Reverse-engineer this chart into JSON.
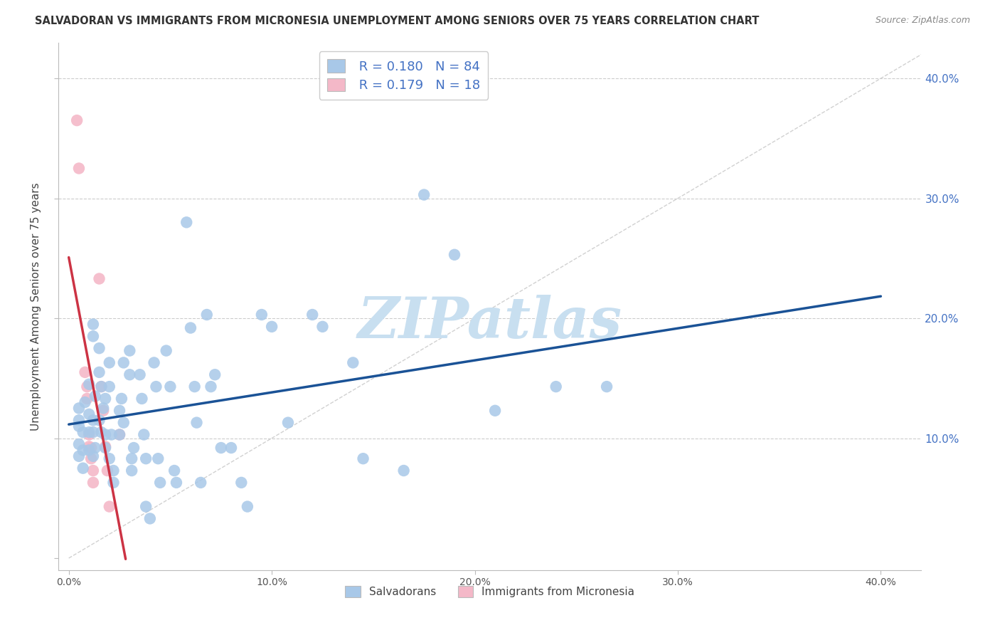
{
  "title": "SALVADORAN VS IMMIGRANTS FROM MICRONESIA UNEMPLOYMENT AMONG SENIORS OVER 75 YEARS CORRELATION CHART",
  "source": "Source: ZipAtlas.com",
  "ylabel": "Unemployment Among Seniors over 75 years",
  "yticks": [
    "",
    "10.0%",
    "20.0%",
    "30.0%",
    "40.0%"
  ],
  "ytick_vals": [
    0.0,
    0.1,
    0.2,
    0.3,
    0.4
  ],
  "xtick_vals": [
    0.0,
    0.1,
    0.2,
    0.3,
    0.4
  ],
  "xtick_labels": [
    "0.0%",
    "10.0%",
    "20.0%",
    "30.0%",
    "40.0%"
  ],
  "xrange": [
    -0.005,
    0.42
  ],
  "yrange": [
    -0.01,
    0.43
  ],
  "blue_R": 0.18,
  "blue_N": 84,
  "pink_R": 0.179,
  "pink_N": 18,
  "blue_color": "#a8c8e8",
  "pink_color": "#f4b8c8",
  "blue_line_color": "#1a5296",
  "pink_line_color": "#cc3344",
  "diag_color": "#cccccc",
  "blue_scatter": [
    [
      0.005,
      0.115
    ],
    [
      0.005,
      0.095
    ],
    [
      0.005,
      0.085
    ],
    [
      0.005,
      0.125
    ],
    [
      0.005,
      0.11
    ],
    [
      0.007,
      0.105
    ],
    [
      0.007,
      0.075
    ],
    [
      0.007,
      0.09
    ],
    [
      0.008,
      0.13
    ],
    [
      0.01,
      0.105
    ],
    [
      0.01,
      0.09
    ],
    [
      0.01,
      0.12
    ],
    [
      0.01,
      0.145
    ],
    [
      0.012,
      0.195
    ],
    [
      0.012,
      0.185
    ],
    [
      0.012,
      0.115
    ],
    [
      0.012,
      0.105
    ],
    [
      0.012,
      0.085
    ],
    [
      0.013,
      0.092
    ],
    [
      0.013,
      0.135
    ],
    [
      0.015,
      0.155
    ],
    [
      0.015,
      0.175
    ],
    [
      0.015,
      0.115
    ],
    [
      0.016,
      0.105
    ],
    [
      0.016,
      0.143
    ],
    [
      0.017,
      0.125
    ],
    [
      0.018,
      0.133
    ],
    [
      0.018,
      0.103
    ],
    [
      0.018,
      0.092
    ],
    [
      0.02,
      0.163
    ],
    [
      0.02,
      0.143
    ],
    [
      0.02,
      0.083
    ],
    [
      0.021,
      0.103
    ],
    [
      0.022,
      0.063
    ],
    [
      0.022,
      0.073
    ],
    [
      0.025,
      0.103
    ],
    [
      0.025,
      0.123
    ],
    [
      0.026,
      0.133
    ],
    [
      0.027,
      0.113
    ],
    [
      0.027,
      0.163
    ],
    [
      0.03,
      0.173
    ],
    [
      0.03,
      0.153
    ],
    [
      0.031,
      0.083
    ],
    [
      0.031,
      0.073
    ],
    [
      0.032,
      0.092
    ],
    [
      0.035,
      0.153
    ],
    [
      0.036,
      0.133
    ],
    [
      0.037,
      0.103
    ],
    [
      0.038,
      0.083
    ],
    [
      0.038,
      0.043
    ],
    [
      0.04,
      0.033
    ],
    [
      0.042,
      0.163
    ],
    [
      0.043,
      0.143
    ],
    [
      0.044,
      0.083
    ],
    [
      0.045,
      0.063
    ],
    [
      0.048,
      0.173
    ],
    [
      0.05,
      0.143
    ],
    [
      0.052,
      0.073
    ],
    [
      0.053,
      0.063
    ],
    [
      0.058,
      0.28
    ],
    [
      0.06,
      0.192
    ],
    [
      0.062,
      0.143
    ],
    [
      0.063,
      0.113
    ],
    [
      0.065,
      0.063
    ],
    [
      0.068,
      0.203
    ],
    [
      0.07,
      0.143
    ],
    [
      0.072,
      0.153
    ],
    [
      0.075,
      0.092
    ],
    [
      0.08,
      0.092
    ],
    [
      0.085,
      0.063
    ],
    [
      0.088,
      0.043
    ],
    [
      0.095,
      0.203
    ],
    [
      0.1,
      0.193
    ],
    [
      0.108,
      0.113
    ],
    [
      0.12,
      0.203
    ],
    [
      0.125,
      0.193
    ],
    [
      0.14,
      0.163
    ],
    [
      0.145,
      0.083
    ],
    [
      0.165,
      0.073
    ],
    [
      0.175,
      0.303
    ],
    [
      0.19,
      0.253
    ],
    [
      0.21,
      0.123
    ],
    [
      0.24,
      0.143
    ],
    [
      0.265,
      0.143
    ]
  ],
  "pink_scatter": [
    [
      0.004,
      0.365
    ],
    [
      0.005,
      0.325
    ],
    [
      0.008,
      0.155
    ],
    [
      0.009,
      0.143
    ],
    [
      0.009,
      0.133
    ],
    [
      0.01,
      0.103
    ],
    [
      0.01,
      0.093
    ],
    [
      0.011,
      0.092
    ],
    [
      0.011,
      0.083
    ],
    [
      0.012,
      0.073
    ],
    [
      0.012,
      0.063
    ],
    [
      0.015,
      0.233
    ],
    [
      0.016,
      0.143
    ],
    [
      0.017,
      0.123
    ],
    [
      0.018,
      0.093
    ],
    [
      0.019,
      0.073
    ],
    [
      0.02,
      0.043
    ],
    [
      0.025,
      0.103
    ]
  ],
  "watermark_text": "ZIPatlas",
  "watermark_color": "#c8dff0",
  "legend_label_blue": "Salvadorans",
  "legend_label_pink": "Immigrants from Micronesia"
}
